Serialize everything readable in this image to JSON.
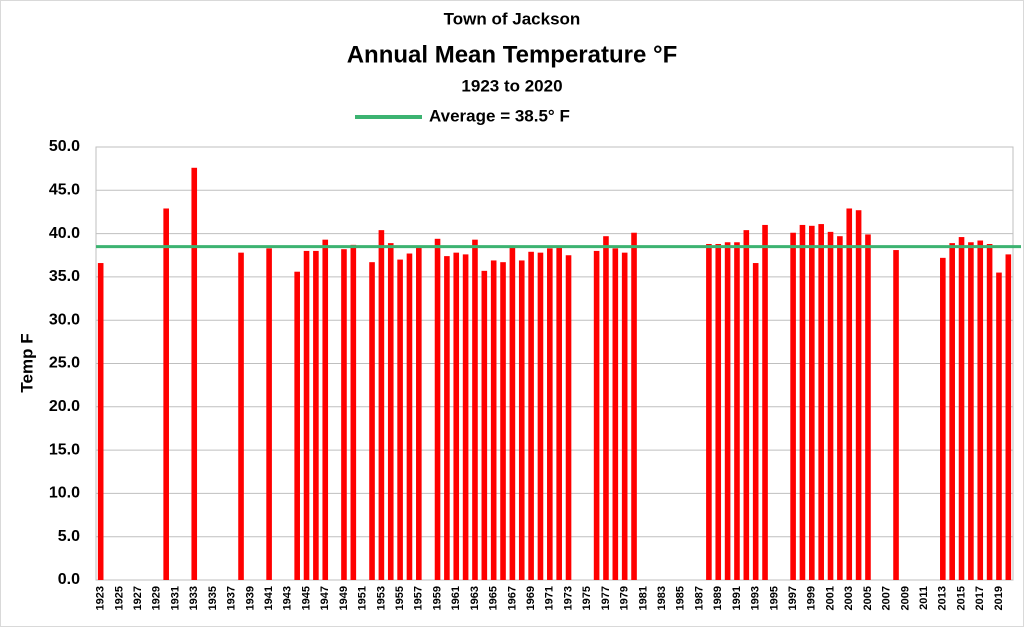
{
  "chart_data": {
    "type": "bar",
    "header": "Town of Jackson",
    "title": "Annual Mean Temperature °F",
    "subtitle": "1923 to 2020",
    "y_label": "Temp  F",
    "color": "#ff0000",
    "grid": true,
    "average_line": {
      "value": 38.5,
      "label": "Average = 38.5° F",
      "color": "#3cb371"
    },
    "ylim": [
      0,
      50
    ],
    "yticks": [
      {
        "value": 0,
        "label": "0.0"
      },
      {
        "value": 5,
        "label": "5.0"
      },
      {
        "value": 10,
        "label": "10.0"
      },
      {
        "value": 15,
        "label": "15.0"
      },
      {
        "value": 20,
        "label": "20.0"
      },
      {
        "value": 25,
        "label": "25.0"
      },
      {
        "value": 30,
        "label": "30.0"
      },
      {
        "value": 35,
        "label": "35.0"
      },
      {
        "value": 40,
        "label": "40.0"
      },
      {
        "value": 45,
        "label": "45.0"
      },
      {
        "value": 50,
        "label": "50.0"
      }
    ],
    "categories": [
      "1923",
      null,
      "1925",
      null,
      "1927",
      null,
      "1929",
      null,
      "1931",
      null,
      "1933",
      null,
      "1935",
      null,
      "1937",
      null,
      "1939",
      null,
      "1941",
      null,
      "1943",
      null,
      "1945",
      null,
      "1947",
      null,
      "1949",
      null,
      "1951",
      null,
      "1953",
      null,
      "1955",
      null,
      "1957",
      null,
      "1959",
      null,
      "1961",
      null,
      "1963",
      null,
      "1965",
      null,
      "1967",
      null,
      "1969",
      null,
      "1971",
      null,
      "1973",
      null,
      "1975",
      null,
      "1977",
      null,
      "1979",
      null,
      "1981",
      null,
      "1983",
      null,
      "1985",
      null,
      "1987",
      null,
      "1989",
      null,
      "1991",
      null,
      "1993",
      null,
      "1995",
      null,
      "1997",
      null,
      "1999",
      null,
      "2001",
      null,
      "2003",
      null,
      "2005",
      null,
      "2007",
      null,
      "2009",
      null,
      "2011",
      null,
      "2013",
      null,
      "2015",
      null,
      "2017",
      null,
      "2019",
      null
    ],
    "values": [
      36.6,
      null,
      null,
      null,
      null,
      null,
      null,
      42.9,
      null,
      null,
      47.6,
      null,
      null,
      null,
      null,
      37.8,
      null,
      null,
      38.3,
      null,
      null,
      35.6,
      38.0,
      38.0,
      39.3,
      null,
      38.2,
      38.7,
      null,
      36.7,
      40.4,
      38.9,
      37.0,
      37.7,
      38.5,
      null,
      39.4,
      37.4,
      37.8,
      37.6,
      39.3,
      35.7,
      36.9,
      36.7,
      38.5,
      36.9,
      37.9,
      37.8,
      38.3,
      38.5,
      37.5,
      null,
      null,
      38.0,
      39.7,
      38.3,
      37.8,
      40.1,
      null,
      null,
      null,
      null,
      null,
      null,
      null,
      38.8,
      38.8,
      39.0,
      39.0,
      40.4,
      36.6,
      41.0,
      null,
      null,
      40.1,
      41.0,
      40.9,
      41.1,
      40.2,
      39.7,
      42.9,
      42.7,
      39.9,
      null,
      null,
      38.1,
      null,
      null,
      null,
      null,
      37.2,
      38.9,
      39.6,
      39.0,
      39.2,
      38.8,
      35.5,
      37.6
    ]
  }
}
